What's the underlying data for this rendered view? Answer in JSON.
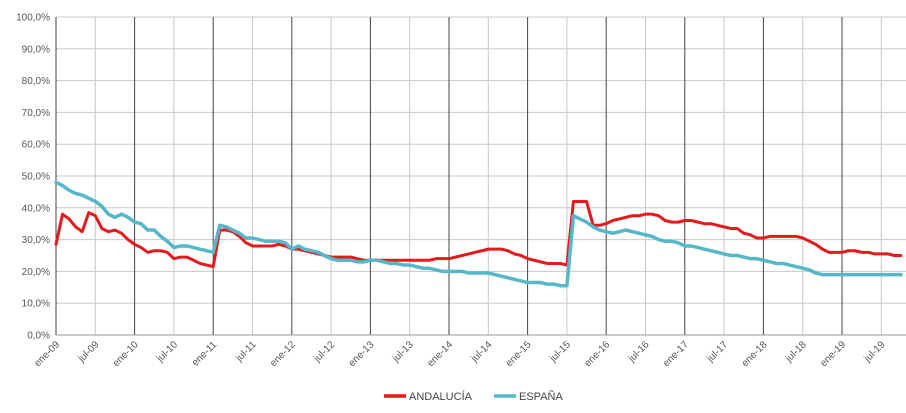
{
  "chart_data": {
    "type": "line",
    "title": "",
    "xlabel": "",
    "ylabel": "",
    "ylim": [
      0,
      100
    ],
    "y_ticks": [
      "0,0%",
      "10,0%",
      "20,0%",
      "30,0%",
      "40,0%",
      "50,0%",
      "60,0%",
      "70,0%",
      "80,0%",
      "90,0%",
      "100,0%"
    ],
    "x_tick_labels": [
      "ene-09",
      "jul-09",
      "ene-10",
      "jul-10",
      "ene-11",
      "jul-11",
      "ene-12",
      "jul-12",
      "ene-13",
      "jul-13",
      "ene-14",
      "jul-14",
      "ene-15",
      "jul-15",
      "ene-16",
      "jul-16",
      "ene-17",
      "jul-17",
      "ene-18",
      "jul-18",
      "ene-19",
      "jul-19"
    ],
    "x_start": "2009-01",
    "grid": true,
    "legend_position": "bottom-center",
    "colors": {
      "andalucia": "#e41a1c",
      "espana": "#55b7c9"
    },
    "series": [
      {
        "name": "ANDALUCÍA",
        "values": [
          [
            0,
            28.5
          ],
          [
            1,
            38.0
          ],
          [
            2,
            36.5
          ],
          [
            3,
            34.0
          ],
          [
            4,
            32.5
          ],
          [
            5,
            38.5
          ],
          [
            6,
            37.5
          ],
          [
            7,
            33.5
          ],
          [
            8,
            32.5
          ],
          [
            9,
            33.0
          ],
          [
            10,
            32.0
          ],
          [
            11,
            30.0
          ],
          [
            12,
            28.5
          ],
          [
            13,
            27.5
          ],
          [
            14,
            26.0
          ],
          [
            15,
            26.5
          ],
          [
            16,
            26.5
          ],
          [
            17,
            26.0
          ],
          [
            18,
            24.0
          ],
          [
            19,
            24.5
          ],
          [
            20,
            24.5
          ],
          [
            21,
            23.5
          ],
          [
            22,
            22.5
          ],
          [
            23,
            22.0
          ],
          [
            24,
            21.5
          ],
          [
            25,
            33.0
          ],
          [
            26,
            33.0
          ],
          [
            27,
            32.5
          ],
          [
            28,
            31.0
          ],
          [
            29,
            29.0
          ],
          [
            30,
            28.0
          ],
          [
            31,
            28.0
          ],
          [
            32,
            28.0
          ],
          [
            33,
            28.0
          ],
          [
            34,
            28.5
          ],
          [
            35,
            28.0
          ],
          [
            36,
            27.0
          ],
          [
            37,
            27.0
          ],
          [
            38,
            26.5
          ],
          [
            39,
            26.0
          ],
          [
            40,
            25.5
          ],
          [
            41,
            25.0
          ],
          [
            42,
            24.5
          ],
          [
            43,
            24.5
          ],
          [
            44,
            24.5
          ],
          [
            45,
            24.5
          ],
          [
            46,
            24.0
          ],
          [
            47,
            23.5
          ],
          [
            48,
            23.5
          ],
          [
            49,
            23.5
          ],
          [
            50,
            23.5
          ],
          [
            51,
            23.5
          ],
          [
            52,
            23.5
          ],
          [
            53,
            23.5
          ],
          [
            54,
            23.5
          ],
          [
            55,
            23.5
          ],
          [
            56,
            23.5
          ],
          [
            57,
            23.5
          ],
          [
            58,
            24.0
          ],
          [
            59,
            24.0
          ],
          [
            60,
            24.0
          ],
          [
            61,
            24.5
          ],
          [
            62,
            25.0
          ],
          [
            63,
            25.5
          ],
          [
            64,
            26.0
          ],
          [
            65,
            26.5
          ],
          [
            66,
            27.0
          ],
          [
            67,
            27.0
          ],
          [
            68,
            27.0
          ],
          [
            69,
            26.5
          ],
          [
            70,
            25.5
          ],
          [
            71,
            25.0
          ],
          [
            72,
            24.0
          ],
          [
            73,
            23.5
          ],
          [
            74,
            23.0
          ],
          [
            75,
            22.5
          ],
          [
            76,
            22.5
          ],
          [
            77,
            22.5
          ],
          [
            78,
            22.0
          ],
          [
            79,
            42.0
          ],
          [
            80,
            42.0
          ],
          [
            81,
            42.0
          ],
          [
            82,
            34.5
          ],
          [
            83,
            34.5
          ],
          [
            84,
            35.0
          ],
          [
            85,
            36.0
          ],
          [
            86,
            36.5
          ],
          [
            87,
            37.0
          ],
          [
            88,
            37.5
          ],
          [
            89,
            37.5
          ],
          [
            90,
            38.0
          ],
          [
            91,
            38.0
          ],
          [
            92,
            37.5
          ],
          [
            93,
            36.0
          ],
          [
            94,
            35.5
          ],
          [
            95,
            35.5
          ],
          [
            96,
            36.0
          ],
          [
            97,
            36.0
          ],
          [
            98,
            35.5
          ],
          [
            99,
            35.0
          ],
          [
            100,
            35.0
          ],
          [
            101,
            34.5
          ],
          [
            102,
            34.0
          ],
          [
            103,
            33.5
          ],
          [
            104,
            33.5
          ],
          [
            105,
            32.0
          ],
          [
            106,
            31.5
          ],
          [
            107,
            30.5
          ],
          [
            108,
            30.5
          ],
          [
            109,
            31.0
          ],
          [
            110,
            31.0
          ],
          [
            111,
            31.0
          ],
          [
            112,
            31.0
          ],
          [
            113,
            31.0
          ],
          [
            114,
            30.5
          ],
          [
            115,
            29.5
          ],
          [
            116,
            28.5
          ],
          [
            117,
            27.0
          ],
          [
            118,
            26.0
          ],
          [
            119,
            26.0
          ],
          [
            120,
            26.0
          ],
          [
            121,
            26.5
          ],
          [
            122,
            26.5
          ],
          [
            123,
            26.0
          ],
          [
            124,
            26.0
          ],
          [
            125,
            25.5
          ],
          [
            126,
            25.5
          ],
          [
            127,
            25.5
          ],
          [
            128,
            25.0
          ],
          [
            129,
            25.0
          ]
        ]
      },
      {
        "name": "ESPAÑA",
        "values": [
          [
            0,
            48.0
          ],
          [
            1,
            47.0
          ],
          [
            2,
            45.5
          ],
          [
            3,
            44.5
          ],
          [
            4,
            44.0
          ],
          [
            5,
            43.0
          ],
          [
            6,
            42.0
          ],
          [
            7,
            40.5
          ],
          [
            8,
            38.0
          ],
          [
            9,
            37.0
          ],
          [
            10,
            38.0
          ],
          [
            11,
            37.0
          ],
          [
            12,
            35.5
          ],
          [
            13,
            35.0
          ],
          [
            14,
            33.0
          ],
          [
            15,
            33.0
          ],
          [
            16,
            31.0
          ],
          [
            17,
            29.5
          ],
          [
            18,
            27.5
          ],
          [
            19,
            28.0
          ],
          [
            20,
            28.0
          ],
          [
            21,
            27.5
          ],
          [
            22,
            27.0
          ],
          [
            23,
            26.5
          ],
          [
            24,
            26.0
          ],
          [
            25,
            34.5
          ],
          [
            26,
            34.0
          ],
          [
            27,
            33.0
          ],
          [
            28,
            32.0
          ],
          [
            29,
            30.5
          ],
          [
            30,
            30.5
          ],
          [
            31,
            30.0
          ],
          [
            32,
            29.5
          ],
          [
            33,
            29.5
          ],
          [
            34,
            29.5
          ],
          [
            35,
            29.0
          ],
          [
            36,
            27.0
          ],
          [
            37,
            28.0
          ],
          [
            38,
            27.0
          ],
          [
            39,
            26.5
          ],
          [
            40,
            26.0
          ],
          [
            41,
            25.0
          ],
          [
            42,
            24.0
          ],
          [
            43,
            23.5
          ],
          [
            44,
            23.5
          ],
          [
            45,
            23.5
          ],
          [
            46,
            23.0
          ],
          [
            47,
            23.0
          ],
          [
            48,
            23.5
          ],
          [
            49,
            23.5
          ],
          [
            50,
            23.0
          ],
          [
            51,
            22.5
          ],
          [
            52,
            22.5
          ],
          [
            53,
            22.0
          ],
          [
            54,
            22.0
          ],
          [
            55,
            21.5
          ],
          [
            56,
            21.0
          ],
          [
            57,
            21.0
          ],
          [
            58,
            20.5
          ],
          [
            59,
            20.0
          ],
          [
            60,
            20.0
          ],
          [
            61,
            20.0
          ],
          [
            62,
            20.0
          ],
          [
            63,
            19.5
          ],
          [
            64,
            19.5
          ],
          [
            65,
            19.5
          ],
          [
            66,
            19.5
          ],
          [
            67,
            19.0
          ],
          [
            68,
            18.5
          ],
          [
            69,
            18.0
          ],
          [
            70,
            17.5
          ],
          [
            71,
            17.0
          ],
          [
            72,
            16.5
          ],
          [
            73,
            16.5
          ],
          [
            74,
            16.5
          ],
          [
            75,
            16.0
          ],
          [
            76,
            16.0
          ],
          [
            77,
            15.5
          ],
          [
            78,
            15.5
          ],
          [
            79,
            37.5
          ],
          [
            80,
            36.5
          ],
          [
            81,
            35.5
          ],
          [
            82,
            34.0
          ],
          [
            83,
            33.0
          ],
          [
            84,
            32.5
          ],
          [
            85,
            32.0
          ],
          [
            86,
            32.5
          ],
          [
            87,
            33.0
          ],
          [
            88,
            32.5
          ],
          [
            89,
            32.0
          ],
          [
            90,
            31.5
          ],
          [
            91,
            31.0
          ],
          [
            92,
            30.0
          ],
          [
            93,
            29.5
          ],
          [
            94,
            29.5
          ],
          [
            95,
            29.0
          ],
          [
            96,
            28.0
          ],
          [
            97,
            28.0
          ],
          [
            98,
            27.5
          ],
          [
            99,
            27.0
          ],
          [
            100,
            26.5
          ],
          [
            101,
            26.0
          ],
          [
            102,
            25.5
          ],
          [
            103,
            25.0
          ],
          [
            104,
            25.0
          ],
          [
            105,
            24.5
          ],
          [
            106,
            24.0
          ],
          [
            107,
            24.0
          ],
          [
            108,
            23.5
          ],
          [
            109,
            23.0
          ],
          [
            110,
            22.5
          ],
          [
            111,
            22.5
          ],
          [
            112,
            22.0
          ],
          [
            113,
            21.5
          ],
          [
            114,
            21.0
          ],
          [
            115,
            20.5
          ],
          [
            116,
            19.5
          ],
          [
            117,
            19.0
          ],
          [
            118,
            19.0
          ],
          [
            119,
            19.0
          ],
          [
            120,
            19.0
          ],
          [
            121,
            19.0
          ],
          [
            122,
            19.0
          ],
          [
            123,
            19.0
          ],
          [
            124,
            19.0
          ],
          [
            125,
            19.0
          ],
          [
            126,
            19.0
          ],
          [
            127,
            19.0
          ],
          [
            128,
            19.0
          ],
          [
            129,
            19.0
          ]
        ]
      }
    ]
  }
}
